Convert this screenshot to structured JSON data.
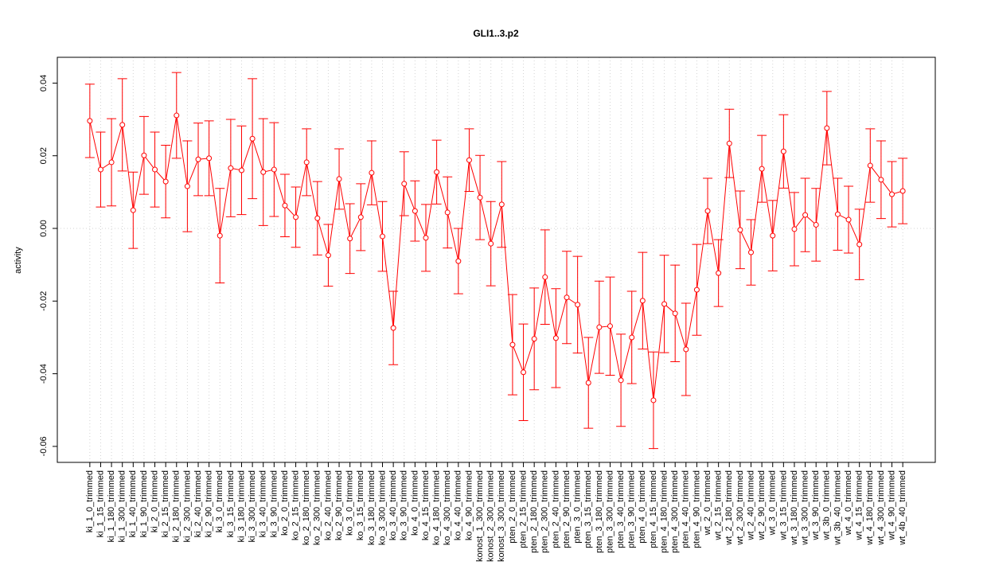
{
  "chart_data": {
    "type": "line",
    "title": "GLI1..3.p2",
    "y_label": "activity",
    "categories": [
      "ki_1_0_trimmed",
      "ki_1_15_trimmed",
      "ki_1_180_trimmed",
      "ki_1_300_trimmed",
      "ki_1_40_trimmed",
      "ki_1_90_trimmed",
      "ki_2_0_trimmed",
      "ki_2_15_trimmed",
      "ki_2_180_trimmed",
      "ki_2_300_trimmed",
      "ki_2_40_trimmed",
      "ki_2_90_trimmed",
      "ki_3_0_trimmed",
      "ki_3_15_trimmed",
      "ki_3_180_trimmed",
      "ki_3_300_trimmed",
      "ki_3_40_trimmed",
      "ki_3_90_trimmed",
      "ko_2_0_trimmed",
      "ko_2_15_trimmed",
      "ko_2_180_trimmed",
      "ko_2_300_trimmed",
      "ko_2_40_trimmed",
      "ko_2_90_trimmed",
      "ko_3_0_trimmed",
      "ko_3_15_trimmed",
      "ko_3_180_trimmed",
      "ko_3_300_trimmed",
      "ko_3_40_trimmed",
      "ko_3_90_trimmed",
      "ko_4_0_trimmed",
      "ko_4_15_trimmed",
      "ko_4_180_trimmed",
      "ko_4_300_trimmed",
      "ko_4_40_trimmed",
      "ko_4_90_trimmed",
      "konost_1_300_trimmed",
      "konost_2_300_trimmed",
      "konost_3_300_trimmed",
      "pten_2_0_trimmed",
      "pten_2_15_trimmed",
      "pten_2_180_trimmed",
      "pten_2_300_trimmed",
      "pten_2_40_trimmed",
      "pten_2_90_trimmed",
      "pten_3_0_trimmed",
      "pten_3_15_trimmed",
      "pten_3_180_trimmed",
      "pten_3_300_trimmed",
      "pten_3_40_trimmed",
      "pten_3_90_trimmed",
      "pten_4_0_trimmed",
      "pten_4_15_trimmed",
      "pten_4_180_trimmed",
      "pten_4_300_trimmed",
      "pten_4_40_trimmed",
      "pten_4_90_trimmed",
      "wt_2_0_trimmed",
      "wt_2_15_trimmed",
      "wt_2_180_trimmed",
      "wt_2_300_trimmed",
      "wt_2_40_trimmed",
      "wt_2_90_trimmed",
      "wt_3_0_trimmed",
      "wt_3_15_trimmed",
      "wt_3_180_trimmed",
      "wt_3_300_trimmed",
      "wt_3_90_trimmed",
      "wt_3b_0_trimmed",
      "wt_3b_40_trimmed",
      "wt_4_0_trimmed",
      "wt_4_15_trimmed",
      "wt_4_180_trimmed",
      "wt_4_300_trimmed",
      "wt_4_90_trimmed",
      "wt_4b_40_trimmed"
    ],
    "values": [
      0.0296,
      0.0162,
      0.0182,
      0.0285,
      0.005,
      0.0201,
      0.0162,
      0.0129,
      0.0311,
      0.0116,
      0.019,
      0.0193,
      -0.002,
      0.0166,
      0.016,
      0.0247,
      0.0155,
      0.0162,
      0.0063,
      0.0031,
      0.0182,
      0.0028,
      -0.0074,
      0.0136,
      -0.0028,
      0.0031,
      0.0153,
      -0.0022,
      -0.0274,
      0.0123,
      0.0048,
      -0.0026,
      0.0155,
      0.0044,
      -0.009,
      0.0188,
      0.0085,
      -0.0042,
      0.0066,
      -0.032,
      -0.0396,
      -0.0304,
      -0.0134,
      -0.0302,
      -0.019,
      -0.021,
      -0.0425,
      -0.0272,
      -0.0269,
      -0.0418,
      -0.03,
      -0.0199,
      -0.0473,
      -0.0208,
      -0.0234,
      -0.0333,
      -0.0169,
      0.0048,
      -0.0123,
      0.0234,
      -0.0004,
      -0.0066,
      0.0164,
      -0.002,
      0.0212,
      -0.0002,
      0.0037,
      0.001,
      0.0276,
      0.0039,
      0.0024,
      -0.0044,
      0.0173,
      0.0134,
      0.0094,
      0.0103
    ],
    "errors": [
      0.0101,
      0.0103,
      0.012,
      0.0127,
      0.0105,
      0.0107,
      0.0103,
      0.01,
      0.0118,
      0.0125,
      0.01,
      0.0103,
      0.013,
      0.0134,
      0.0122,
      0.0165,
      0.0147,
      0.0129,
      0.0086,
      0.0083,
      0.0092,
      0.0101,
      0.0085,
      0.0083,
      0.0096,
      0.0092,
      0.0088,
      0.0096,
      0.0101,
      0.0088,
      0.0083,
      0.0092,
      0.0088,
      0.0098,
      0.009,
      0.0086,
      0.0116,
      0.0116,
      0.0118,
      0.0138,
      0.0133,
      0.014,
      0.013,
      0.0136,
      0.0127,
      0.0133,
      0.0125,
      0.0127,
      0.0135,
      0.0127,
      0.0127,
      0.0133,
      0.0133,
      0.0134,
      0.0133,
      0.0127,
      0.0125,
      0.009,
      0.0092,
      0.0094,
      0.0107,
      0.009,
      0.0092,
      0.0097,
      0.0101,
      0.0101,
      0.0101,
      0.01,
      0.0101,
      0.0099,
      0.0092,
      0.0097,
      0.0101,
      0.0107,
      0.009,
      0.009
    ],
    "color": "#ff0000",
    "ylim": [
      -0.0644,
      0.0471
    ],
    "yticks": [
      -0.06,
      -0.04,
      -0.02,
      {
        "value": 0,
        "label": "0.00"
      },
      0.02,
      0.04
    ],
    "grid": true,
    "reference_line": 0
  }
}
